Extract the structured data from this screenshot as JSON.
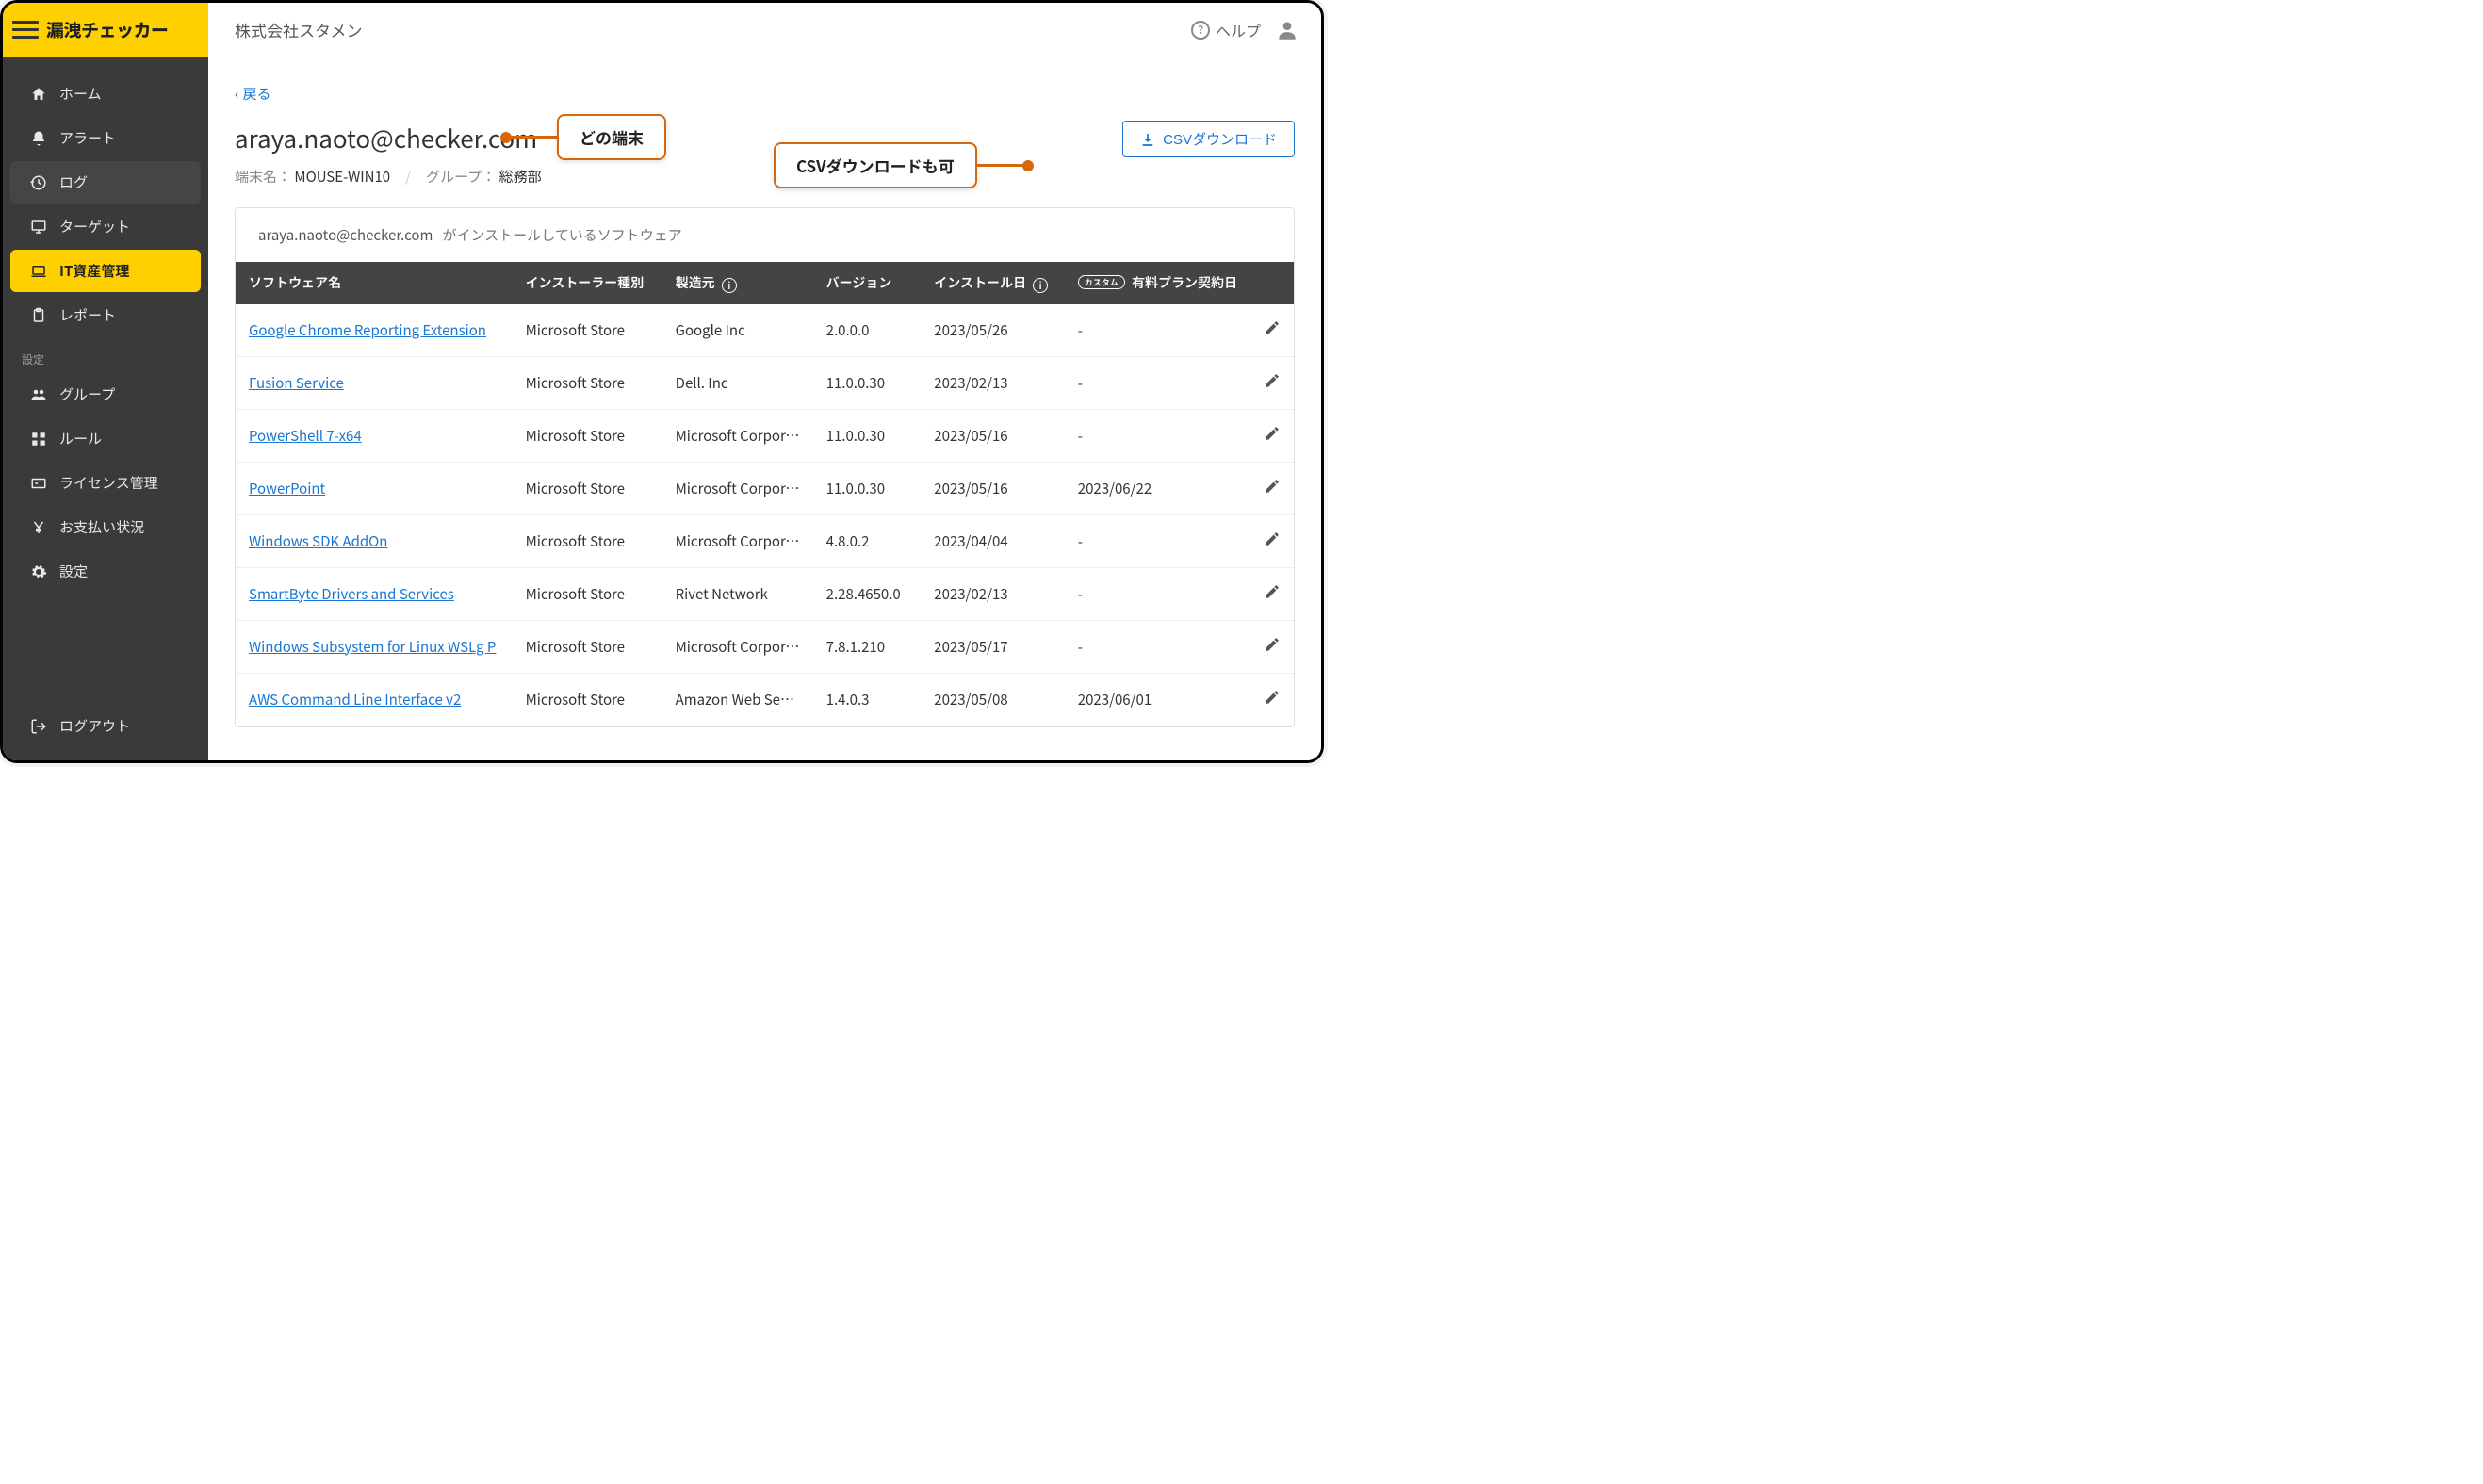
{
  "brand": {
    "title": "漏洩チェッカー"
  },
  "header": {
    "org_name": "株式会社スタメン",
    "help_label": "ヘルプ"
  },
  "sidebar": {
    "items": [
      {
        "label": "ホーム",
        "icon": "home"
      },
      {
        "label": "アラート",
        "icon": "bell"
      },
      {
        "label": "ログ",
        "icon": "history",
        "muted": true
      },
      {
        "label": "ターゲット",
        "icon": "monitor"
      },
      {
        "label": "IT資産管理",
        "icon": "laptop",
        "active": true
      },
      {
        "label": "レポート",
        "icon": "clipboard"
      }
    ],
    "section_label": "設定",
    "settings_items": [
      {
        "label": "グループ",
        "icon": "group"
      },
      {
        "label": "ルール",
        "icon": "grid"
      },
      {
        "label": "ライセンス管理",
        "icon": "license"
      },
      {
        "label": "お支払い状況",
        "icon": "yen"
      },
      {
        "label": "設定",
        "icon": "gear"
      }
    ],
    "logout_label": "ログアウト"
  },
  "main": {
    "back_label": "戻る",
    "page_title": "araya.naoto@checker.com",
    "device_label": "端末名：",
    "device_value": "MOUSE-WIN10",
    "group_label": "グループ：",
    "group_value": "総務部",
    "csv_button_label": "CSVダウンロード",
    "table_title_user": "araya.naoto@checker.com",
    "table_title_suffix": "がインストールしているソフトウェア"
  },
  "callouts": {
    "device": "どの端末",
    "csv": "CSVダウンロードも可"
  },
  "table": {
    "columns": {
      "name": "ソフトウェア名",
      "installer": "インストーラー種別",
      "manufacturer": "製造元",
      "version": "バージョン",
      "install_date": "インストール日",
      "custom_badge": "カスタム",
      "plan_date": "有料プラン契約日"
    },
    "rows": [
      {
        "name": "Google Chrome Reporting Extension",
        "installer": "Microsoft Store",
        "manufacturer": "Google Inc",
        "version": "2.0.0.0",
        "install_date": "2023/05/26",
        "plan_date": "-"
      },
      {
        "name": "Fusion Service",
        "installer": "Microsoft Store",
        "manufacturer": "Dell. Inc",
        "version": "11.0.0.30",
        "install_date": "2023/02/13",
        "plan_date": "-"
      },
      {
        "name": "PowerShell 7-x64",
        "installer": "Microsoft Store",
        "manufacturer": "Microsoft Corporatio",
        "version": "11.0.0.30",
        "install_date": "2023/05/16",
        "plan_date": "-"
      },
      {
        "name": "PowerPoint",
        "installer": "Microsoft Store",
        "manufacturer": "Microsoft Corporatio",
        "version": "11.0.0.30",
        "install_date": "2023/05/16",
        "plan_date": "2023/06/22"
      },
      {
        "name": "Windows SDK AddOn",
        "installer": "Microsoft Store",
        "manufacturer": "Microsoft Corporatio",
        "version": "4.8.0.2",
        "install_date": "2023/04/04",
        "plan_date": "-"
      },
      {
        "name": "SmartByte Drivers and Services",
        "installer": "Microsoft Store",
        "manufacturer": "Rivet Network",
        "version": "2.28.4650.0",
        "install_date": "2023/02/13",
        "plan_date": "-"
      },
      {
        "name": "Windows Subsystem for Linux WSLg P",
        "installer": "Microsoft Store",
        "manufacturer": "Microsoft Corporatio",
        "version": "7.8.1.210",
        "install_date": "2023/05/17",
        "plan_date": "-"
      },
      {
        "name": "AWS Command Line Interface v2",
        "installer": "Microsoft Store",
        "manufacturer": "Amazon Web Service",
        "version": "1.4.0.3",
        "install_date": "2023/05/08",
        "plan_date": "2023/06/01"
      }
    ]
  },
  "colors": {
    "brand_yellow": "#ffd000",
    "sidebar_bg": "#3a3a3a",
    "table_header_bg": "#444444",
    "link_blue": "#1976d2",
    "callout_orange": "#d6670b",
    "border_light": "#e0e0e0"
  }
}
